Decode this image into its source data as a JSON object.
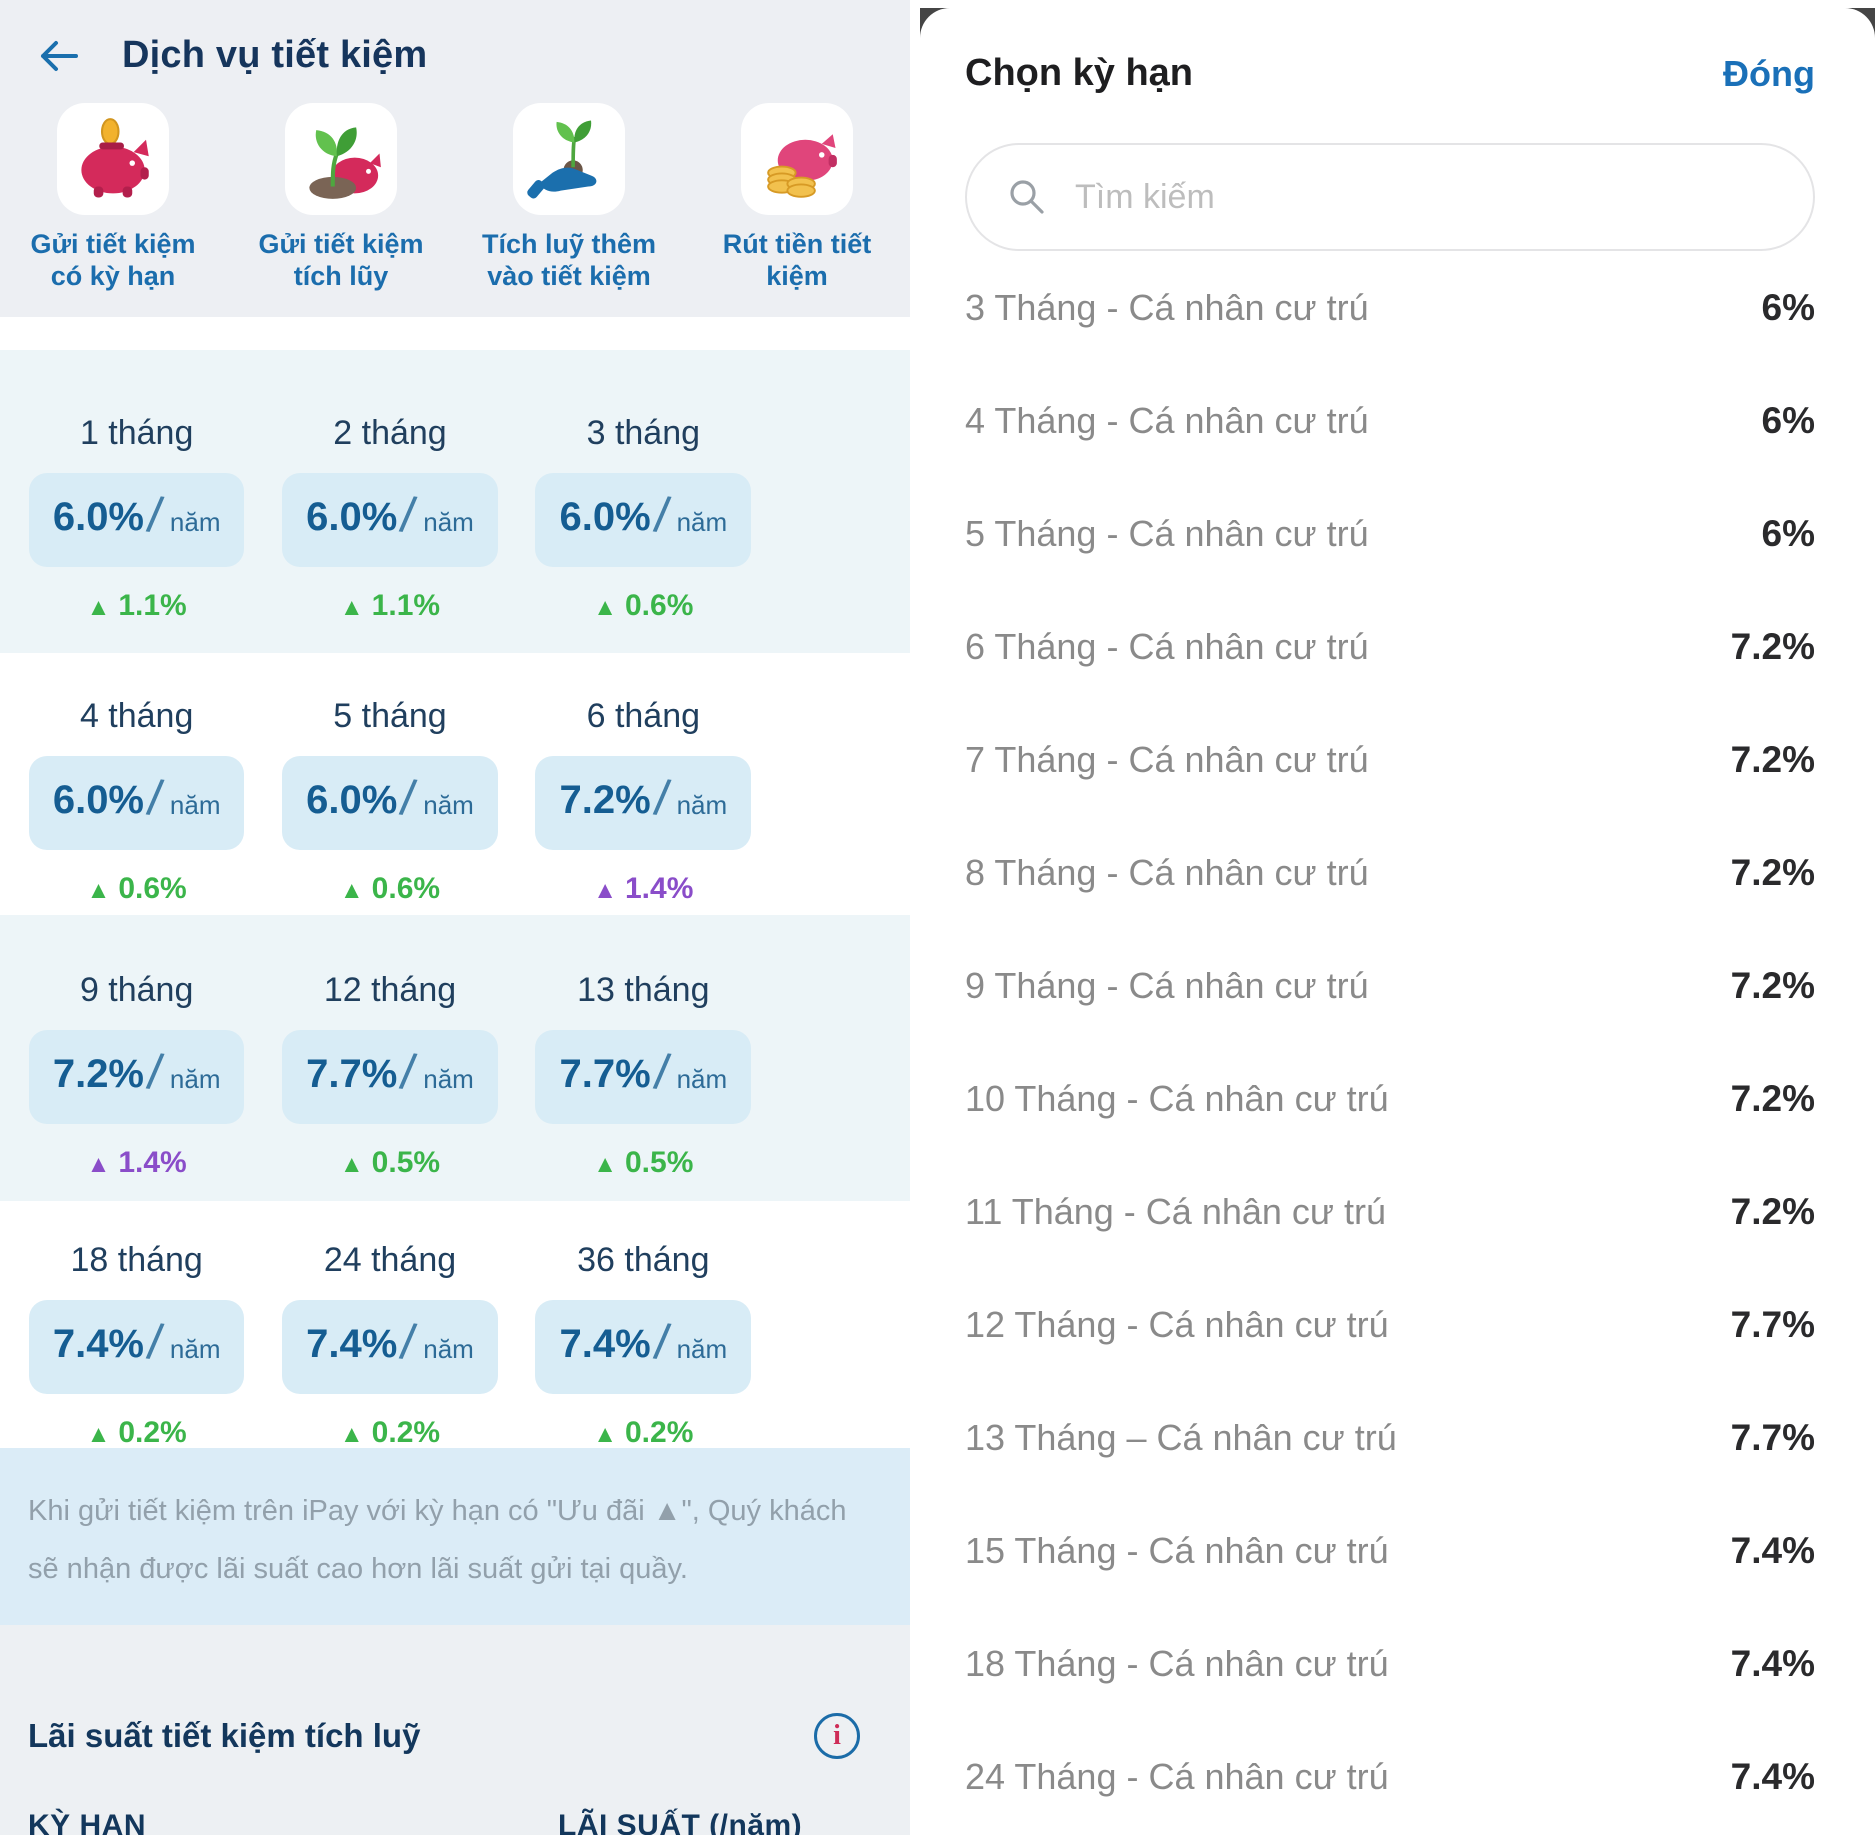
{
  "left_panel": {
    "title": "Dịch vụ tiết kiệm",
    "back_icon": "arrow-left-icon",
    "services": [
      {
        "label": "Gửi tiết kiệm\ncó kỳ hạn",
        "icon": "piggy-bank-coin-icon"
      },
      {
        "label": "Gửi tiết kiệm\ntích lũy",
        "icon": "piggy-bank-sprout-icon"
      },
      {
        "label": "Tích luỹ thêm\nvào tiết kiệm",
        "icon": "hand-plant-icon"
      },
      {
        "label": "Rút tiền tiết\nkiệm",
        "icon": "piggy-bank-coins-icon"
      }
    ],
    "rates": [
      {
        "term": "1 tháng",
        "rate": "6.0%",
        "unit": "năm",
        "delta": "1.1%",
        "highlight": "green"
      },
      {
        "term": "2 tháng",
        "rate": "6.0%",
        "unit": "năm",
        "delta": "1.1%",
        "highlight": "green"
      },
      {
        "term": "3 tháng",
        "rate": "6.0%",
        "unit": "năm",
        "delta": "0.6%",
        "highlight": "green"
      },
      {
        "term": "4 tháng",
        "rate": "6.0%",
        "unit": "năm",
        "delta": "0.6%",
        "highlight": "green"
      },
      {
        "term": "5 tháng",
        "rate": "6.0%",
        "unit": "năm",
        "delta": "0.6%",
        "highlight": "green"
      },
      {
        "term": "6 tháng",
        "rate": "7.2%",
        "unit": "năm",
        "delta": "1.4%",
        "highlight": "purple"
      },
      {
        "term": "9 tháng",
        "rate": "7.2%",
        "unit": "năm",
        "delta": "1.4%",
        "highlight": "purple"
      },
      {
        "term": "12 tháng",
        "rate": "7.7%",
        "unit": "năm",
        "delta": "0.5%",
        "highlight": "green"
      },
      {
        "term": "13 tháng",
        "rate": "7.7%",
        "unit": "năm",
        "delta": "0.5%",
        "highlight": "green"
      },
      {
        "term": "18 tháng",
        "rate": "7.4%",
        "unit": "năm",
        "delta": "0.2%",
        "highlight": "green"
      },
      {
        "term": "24 tháng",
        "rate": "7.4%",
        "unit": "năm",
        "delta": "0.2%",
        "highlight": "green"
      },
      {
        "term": "36 tháng",
        "rate": "7.4%",
        "unit": "năm",
        "delta": "0.2%",
        "highlight": "green"
      }
    ],
    "delta_marker": "▲",
    "note": "Khi gửi tiết kiệm trên iPay với kỳ hạn có \"Ưu đãi ▲\", Quý khách sẽ nhận được lãi suất cao hơn lãi suất gửi tại quầy.",
    "accumulated_heading": "Lãi suất tiết kiệm tích luỹ",
    "info_icon": "info-icon",
    "info_glyph": "i",
    "table_headers": {
      "term": "KỲ HẠN",
      "rate": "LÃI SUẤT (/năm)"
    }
  },
  "right_panel": {
    "title": "Chọn kỳ hạn",
    "close_label": "Đóng",
    "search": {
      "placeholder": "Tìm kiếm",
      "icon": "search-icon",
      "value": ""
    },
    "options": [
      {
        "label": "3 Tháng - Cá nhân cư trú",
        "rate": "6%"
      },
      {
        "label": "4 Tháng - Cá nhân cư trú",
        "rate": "6%"
      },
      {
        "label": "5 Tháng - Cá nhân cư trú",
        "rate": "6%"
      },
      {
        "label": "6 Tháng - Cá nhân cư trú",
        "rate": "7.2%"
      },
      {
        "label": "7 Tháng - Cá nhân cư trú",
        "rate": "7.2%"
      },
      {
        "label": "8 Tháng - Cá nhân cư trú",
        "rate": "7.2%"
      },
      {
        "label": "9 Tháng - Cá nhân cư trú",
        "rate": "7.2%"
      },
      {
        "label": "10 Tháng - Cá nhân cư trú",
        "rate": "7.2%"
      },
      {
        "label": "11 Tháng - Cá nhân cư trú",
        "rate": "7.2%"
      },
      {
        "label": "12 Tháng - Cá nhân cư trú",
        "rate": "7.7%"
      },
      {
        "label": "13 Tháng – Cá nhân cư trú",
        "rate": "7.7%"
      },
      {
        "label": "15 Tháng - Cá nhân cư trú",
        "rate": "7.4%"
      },
      {
        "label": "18 Tháng - Cá nhân cư trú",
        "rate": "7.4%"
      },
      {
        "label": "24 Tháng - Cá nhân cư trú",
        "rate": "7.4%"
      }
    ]
  },
  "colors": {
    "title_navy": "#16355c",
    "service_label_blue": "#1b6dad",
    "rate_chip_bg": "#d8ecf6",
    "rate_text_blue": "#155d92",
    "delta_green": "#3bb54a",
    "delta_purple": "#8a4dc9",
    "note_bg": "#dbecf7",
    "note_text": "#92a0ab",
    "section_gray_bg": "#edeff3",
    "row_tint_bg": "#edf5f8",
    "close_blue": "#1a70b8",
    "option_gray": "#8a8a8a",
    "option_rate_dark": "#2a2a2c",
    "info_i_red": "#ce2d58",
    "info_ring_blue": "#1b6ca8",
    "dim_corner": "#454545"
  }
}
